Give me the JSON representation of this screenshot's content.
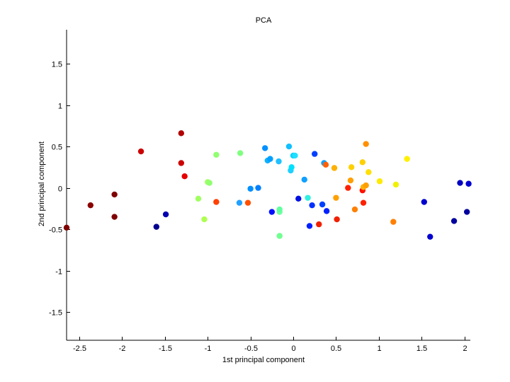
{
  "chart_data": {
    "type": "scatter",
    "title": "PCA",
    "xlabel": "1st principal component",
    "ylabel": "2nd principal component",
    "xlim": [
      -2.65,
      2.07
    ],
    "ylim": [
      -1.84,
      1.91
    ],
    "xticks": [
      -2.5,
      -2,
      -1.5,
      -1,
      -0.5,
      0,
      0.5,
      1,
      1.5,
      2
    ],
    "xtick_labels": [
      "-2.5",
      "-2",
      "-1.5",
      "-1",
      "-0.5",
      "0",
      "0.5",
      "1",
      "1.5",
      "2"
    ],
    "yticks": [
      -1.5,
      -1,
      -0.5,
      0,
      0.5,
      1,
      1.5
    ],
    "ytick_labels": [
      "-1.5",
      "-1",
      "-0.5",
      "0",
      "0.5",
      "1",
      "1.5"
    ],
    "grid": false,
    "legend": "none",
    "points": [
      {
        "x": -2.65,
        "y": -0.48,
        "color": "#7f0000"
      },
      {
        "x": -2.37,
        "y": -0.21,
        "color": "#8b0000"
      },
      {
        "x": -2.09,
        "y": -0.08,
        "color": "#7f0000"
      },
      {
        "x": -2.09,
        "y": -0.35,
        "color": "#7f0000"
      },
      {
        "x": -1.78,
        "y": 0.44,
        "color": "#cc0000"
      },
      {
        "x": -1.31,
        "y": 0.66,
        "color": "#b00000"
      },
      {
        "x": -1.31,
        "y": 0.3,
        "color": "#cc0000"
      },
      {
        "x": -1.27,
        "y": 0.14,
        "color": "#e60000"
      },
      {
        "x": -1.6,
        "y": -0.47,
        "color": "#00008f"
      },
      {
        "x": -1.49,
        "y": -0.32,
        "color": "#0000b0"
      },
      {
        "x": -1.11,
        "y": -0.13,
        "color": "#9fff60"
      },
      {
        "x": -1.04,
        "y": -0.38,
        "color": "#afff50"
      },
      {
        "x": -1.0,
        "y": 0.07,
        "color": "#9fff60"
      },
      {
        "x": -0.98,
        "y": 0.06,
        "color": "#90ff70"
      },
      {
        "x": -0.9,
        "y": 0.4,
        "color": "#90ff70"
      },
      {
        "x": -0.9,
        "y": -0.17,
        "color": "#ff4000"
      },
      {
        "x": -0.62,
        "y": 0.42,
        "color": "#80ff80"
      },
      {
        "x": -0.63,
        "y": -0.18,
        "color": "#20a0ff"
      },
      {
        "x": -0.53,
        "y": -0.18,
        "color": "#ff5000"
      },
      {
        "x": -0.5,
        "y": -0.01,
        "color": "#0090ff"
      },
      {
        "x": -0.41,
        "y": 0.0,
        "color": "#0080ff"
      },
      {
        "x": -0.33,
        "y": 0.48,
        "color": "#0090ff"
      },
      {
        "x": -0.3,
        "y": 0.33,
        "color": "#10b0ff"
      },
      {
        "x": -0.27,
        "y": 0.35,
        "color": "#00a0ff"
      },
      {
        "x": -0.25,
        "y": -0.29,
        "color": "#0010ff"
      },
      {
        "x": -0.17,
        "y": 0.32,
        "color": "#20c0ff"
      },
      {
        "x": -0.16,
        "y": -0.29,
        "color": "#70ffa0"
      },
      {
        "x": -0.16,
        "y": -0.26,
        "color": "#60ffa0"
      },
      {
        "x": -0.16,
        "y": -0.58,
        "color": "#70ff90"
      },
      {
        "x": -0.05,
        "y": 0.5,
        "color": "#10c0ff"
      },
      {
        "x": -0.03,
        "y": 0.21,
        "color": "#20d0ff"
      },
      {
        "x": -0.02,
        "y": 0.25,
        "color": "#00e0ff"
      },
      {
        "x": 0.0,
        "y": 0.39,
        "color": "#00d0ff"
      },
      {
        "x": 0.02,
        "y": 0.39,
        "color": "#20e0ff"
      },
      {
        "x": 0.06,
        "y": -0.13,
        "color": "#0010e0"
      },
      {
        "x": 0.13,
        "y": 0.1,
        "color": "#10a0ff"
      },
      {
        "x": 0.17,
        "y": -0.12,
        "color": "#30f0e0"
      },
      {
        "x": 0.19,
        "y": -0.46,
        "color": "#0020ff"
      },
      {
        "x": 0.22,
        "y": -0.21,
        "color": "#0030ff"
      },
      {
        "x": 0.25,
        "y": 0.41,
        "color": "#0040ff"
      },
      {
        "x": 0.3,
        "y": -0.44,
        "color": "#f02000"
      },
      {
        "x": 0.34,
        "y": -0.2,
        "color": "#0040ff"
      },
      {
        "x": 0.36,
        "y": 0.3,
        "color": "#10a0ff"
      },
      {
        "x": 0.38,
        "y": 0.28,
        "color": "#ff6000"
      },
      {
        "x": 0.39,
        "y": -0.28,
        "color": "#0020ff"
      },
      {
        "x": 0.48,
        "y": 0.24,
        "color": "#ffb000"
      },
      {
        "x": 0.5,
        "y": -0.12,
        "color": "#ffa000"
      },
      {
        "x": 0.51,
        "y": -0.38,
        "color": "#f02000"
      },
      {
        "x": 0.64,
        "y": 0.0,
        "color": "#ff2000"
      },
      {
        "x": 0.67,
        "y": 0.09,
        "color": "#ffa000"
      },
      {
        "x": 0.68,
        "y": 0.25,
        "color": "#ffd000"
      },
      {
        "x": 0.72,
        "y": -0.26,
        "color": "#ff8000"
      },
      {
        "x": 0.81,
        "y": -0.03,
        "color": "#ff1000"
      },
      {
        "x": 0.81,
        "y": 0.31,
        "color": "#ffd000"
      },
      {
        "x": 0.82,
        "y": 0.01,
        "color": "#ffb000"
      },
      {
        "x": 0.82,
        "y": -0.18,
        "color": "#ff2000"
      },
      {
        "x": 0.85,
        "y": 0.03,
        "color": "#ffa000"
      },
      {
        "x": 0.85,
        "y": 0.53,
        "color": "#ff9000"
      },
      {
        "x": 0.88,
        "y": 0.19,
        "color": "#ffe000"
      },
      {
        "x": 1.01,
        "y": 0.08,
        "color": "#ffea00"
      },
      {
        "x": 1.17,
        "y": -0.41,
        "color": "#ff8000"
      },
      {
        "x": 1.2,
        "y": 0.04,
        "color": "#f0f000"
      },
      {
        "x": 1.33,
        "y": 0.35,
        "color": "#fff000"
      },
      {
        "x": 1.53,
        "y": -0.17,
        "color": "#0000d0"
      },
      {
        "x": 1.6,
        "y": -0.59,
        "color": "#0000d0"
      },
      {
        "x": 1.88,
        "y": -0.4,
        "color": "#00009f"
      },
      {
        "x": 1.95,
        "y": 0.06,
        "color": "#0000c0"
      },
      {
        "x": 2.03,
        "y": -0.29,
        "color": "#00009f"
      },
      {
        "x": 2.05,
        "y": 0.05,
        "color": "#0000d0"
      }
    ]
  }
}
